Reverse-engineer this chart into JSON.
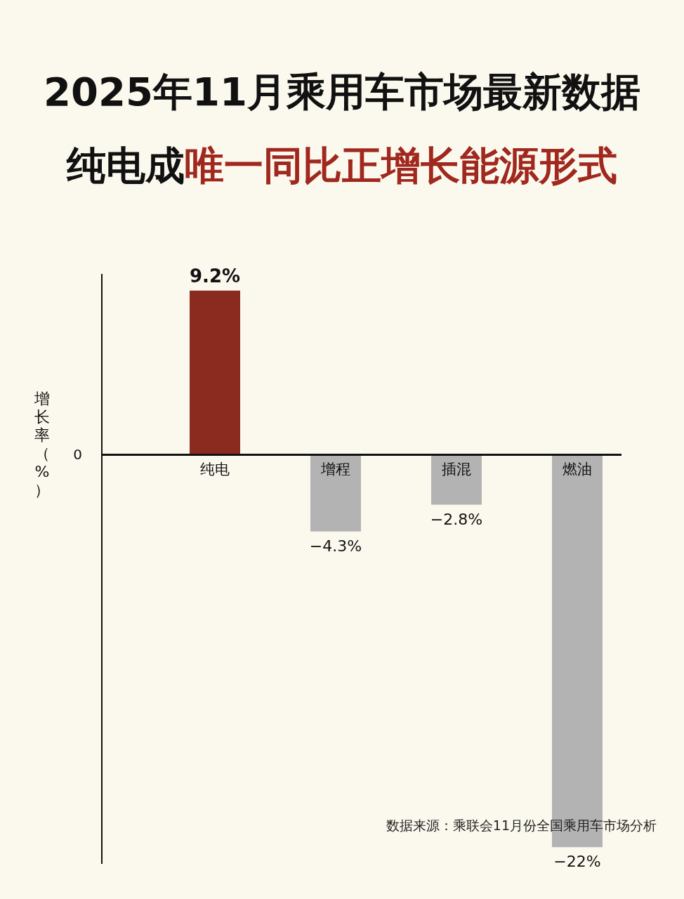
{
  "chart_data": {
    "type": "bar",
    "title": "2025年11月乘用车市场最新数据",
    "subtitle": "纯电成唯一同比正增长能源形式",
    "ylabel": "增长率（%）",
    "categories": [
      "纯电",
      "增程",
      "插混",
      "燃油"
    ],
    "values": [
      9.2,
      -4.3,
      -2.8,
      -22
    ],
    "colors": [
      "#8b2a1f",
      "#b3b3b3",
      "#b3b3b3",
      "#b3b3b3"
    ],
    "value_labels": [
      "9.2%",
      "−4.3%",
      "−2.8%",
      "−22%"
    ],
    "annotations": [
      "0",
      "数据来源：乘联会11月份全国乘用车市场分析"
    ]
  }
}
